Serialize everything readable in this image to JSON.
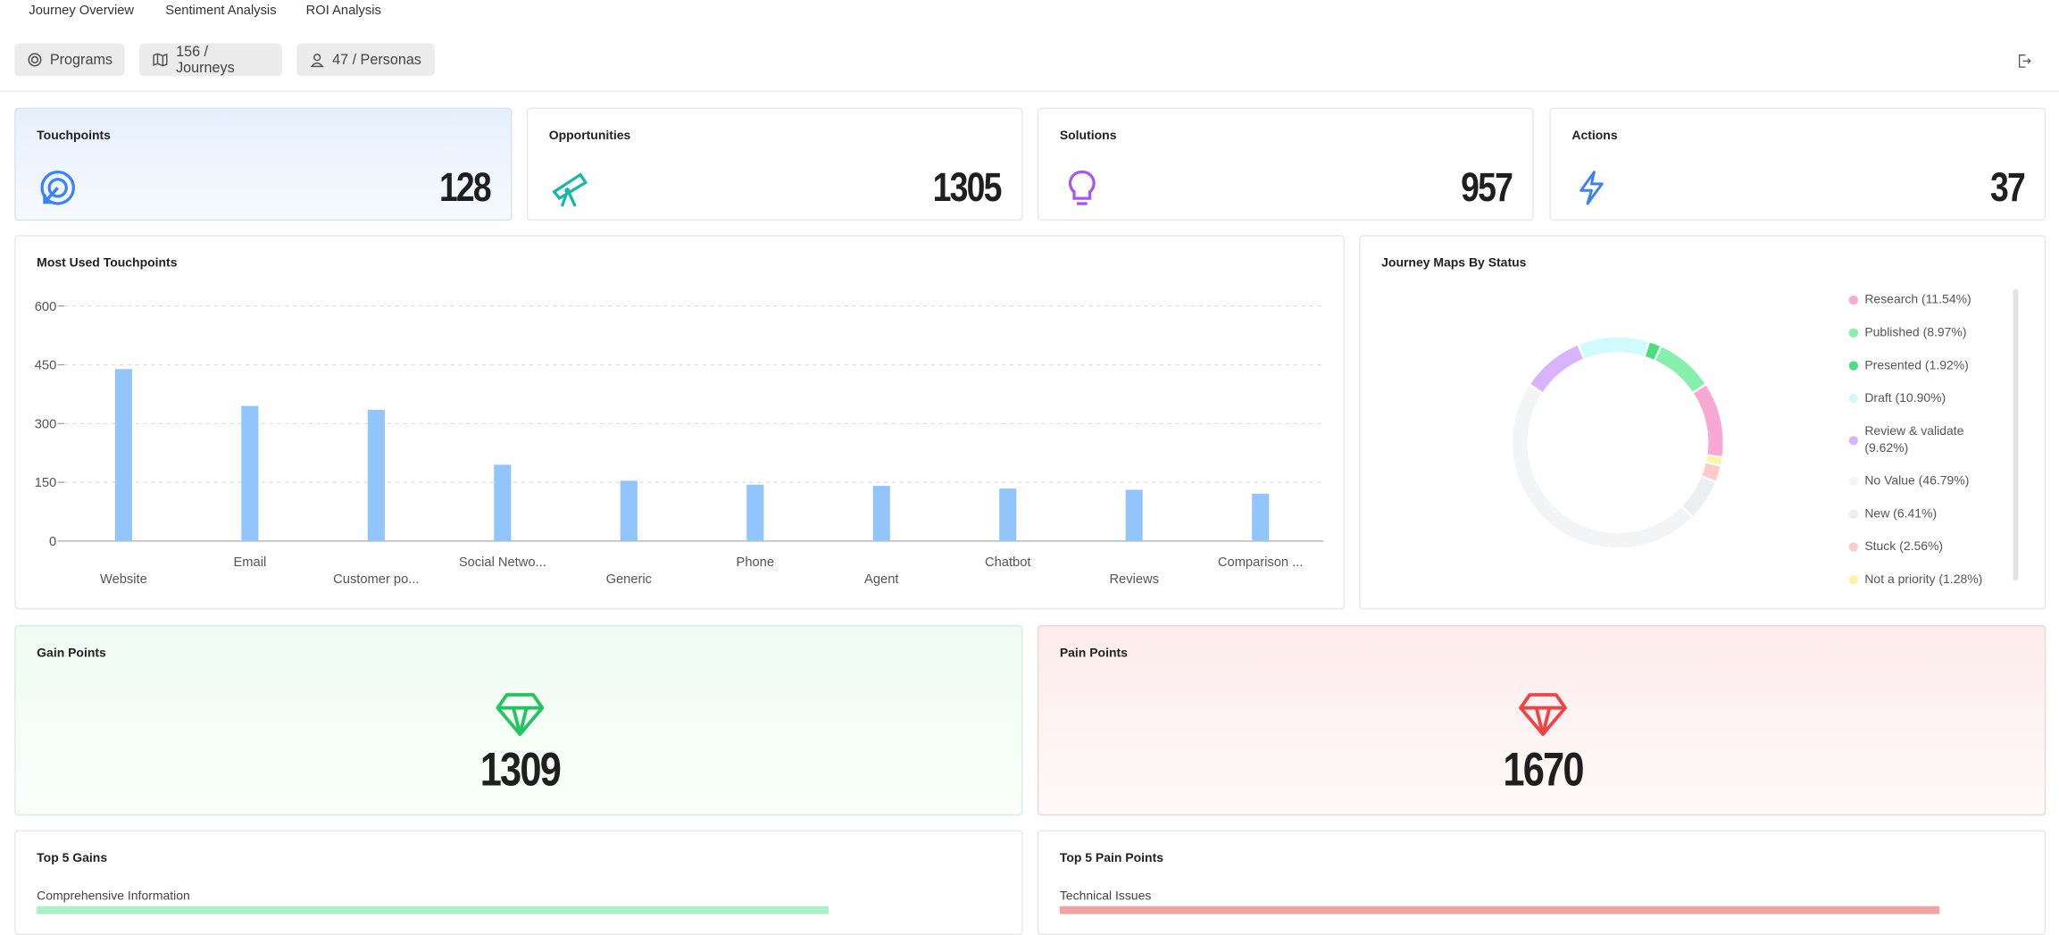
{
  "tabs": [
    "Journey Overview",
    "Sentiment Analysis",
    "ROI Analysis"
  ],
  "filters": [
    "Programs",
    "156 / Journeys",
    "47 / Personas"
  ],
  "stats": [
    {
      "label": "Touchpoints",
      "value": 128
    },
    {
      "label": "Opportunities",
      "value": 1305
    },
    {
      "label": "Solutions",
      "value": 957
    },
    {
      "label": "Actions",
      "value": 37
    }
  ],
  "chart_data": [
    {
      "type": "bar",
      "title": "Most Used Touchpoints",
      "categories": [
        "Website",
        "Email",
        "Customer po...",
        "Social Netwo...",
        "Generic",
        "Phone",
        "Agent",
        "Chatbot",
        "Reviews",
        "Comparison ..."
      ],
      "values": [
        439,
        345,
        335,
        195,
        154,
        144,
        141,
        134,
        131,
        121
      ],
      "color": "#93c5fd",
      "ylim": [
        0,
        600
      ],
      "yticks": [
        0,
        150,
        300,
        450,
        600
      ],
      "grid": true
    },
    {
      "type": "donut",
      "title": "Journey Maps By Status",
      "labels": [
        "Research (11.54%)",
        "Published (8.97%)",
        "Presented (1.92%)",
        "Draft (10.90%)",
        "Review & validate (9.62%)",
        "No Value (46.79%)",
        "New (6.41%)",
        "Stuck (2.56%)",
        "Not a priority (1.28%)"
      ],
      "values": [
        11.54,
        8.97,
        1.92,
        10.9,
        9.62,
        46.79,
        6.41,
        2.56,
        1.28
      ],
      "colors": [
        "#f9a8d4",
        "#86efac",
        "#4ade80",
        "#cffafe",
        "#d8b4fe",
        "#f3f4f6",
        "#eceef0",
        "#fecaca",
        "#fef3a0"
      ]
    }
  ],
  "gain_points": {
    "title": "Gain Points",
    "value": 1309
  },
  "pain_points": {
    "title": "Pain Points",
    "value": 1670
  },
  "top_gains": {
    "title": "Top 5 Gains",
    "items": [
      "Comprehensive Information"
    ]
  },
  "top_pains": {
    "title": "Top 5 Pain Points",
    "items": [
      "Technical Issues"
    ]
  }
}
